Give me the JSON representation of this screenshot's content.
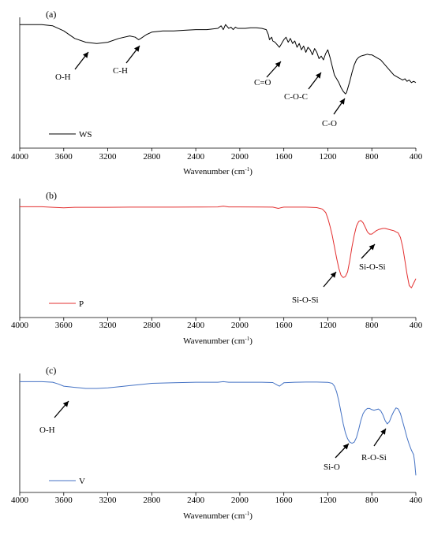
{
  "chart_data": [
    {
      "type": "line",
      "panel_label": "(a)",
      "xlabel": "Wavenumber (cm",
      "xlabel_sup": "-1",
      "xlabel_close": ")",
      "xlim": [
        4000,
        400
      ],
      "x_reversed": true,
      "ylabel": "",
      "grid": false,
      "legend_position": "bottom-left",
      "x_ticks": [
        "4000",
        "3600",
        "3200",
        "2800",
        "2400",
        "2000",
        "1600",
        "1200",
        "800",
        "400"
      ],
      "x_tick_values": [
        4000,
        3600,
        3200,
        2800,
        2400,
        2000,
        1600,
        1200,
        800,
        400
      ],
      "series": [
        {
          "name": "WS",
          "color": "#000000",
          "x": [
            4000,
            3800,
            3700,
            3600,
            3500,
            3400,
            3300,
            3200,
            3100,
            3000,
            2950,
            2920,
            2900,
            2850,
            2800,
            2700,
            2600,
            2500,
            2400,
            2300,
            2200,
            2170,
            2150,
            2130,
            2100,
            2080,
            2060,
            2040,
            2020,
            2000,
            1950,
            1900,
            1850,
            1800,
            1760,
            1740,
            1730,
            1710,
            1700,
            1680,
            1660,
            1640,
            1620,
            1600,
            1580,
            1560,
            1540,
            1520,
            1500,
            1480,
            1460,
            1440,
            1420,
            1400,
            1380,
            1360,
            1340,
            1320,
            1300,
            1280,
            1260,
            1240,
            1220,
            1200,
            1180,
            1160,
            1140,
            1120,
            1100,
            1080,
            1060,
            1040,
            1030,
            1020,
            1000,
            980,
            960,
            940,
            920,
            900,
            880,
            860,
            840,
            820,
            800,
            780,
            760,
            740,
            720,
            700,
            680,
            660,
            640,
            620,
            600,
            580,
            560,
            540,
            520,
            500,
            480,
            460,
            440,
            420,
            400
          ],
          "y": [
            0.98,
            0.98,
            0.97,
            0.93,
            0.87,
            0.84,
            0.83,
            0.84,
            0.87,
            0.89,
            0.88,
            0.86,
            0.87,
            0.9,
            0.92,
            0.93,
            0.93,
            0.935,
            0.94,
            0.94,
            0.95,
            0.97,
            0.94,
            0.98,
            0.95,
            0.96,
            0.94,
            0.96,
            0.95,
            0.95,
            0.95,
            0.955,
            0.955,
            0.95,
            0.94,
            0.9,
            0.86,
            0.88,
            0.85,
            0.84,
            0.82,
            0.8,
            0.83,
            0.86,
            0.88,
            0.84,
            0.87,
            0.83,
            0.85,
            0.8,
            0.83,
            0.78,
            0.81,
            0.76,
            0.8,
            0.78,
            0.74,
            0.79,
            0.76,
            0.71,
            0.73,
            0.7,
            0.75,
            0.78,
            0.72,
            0.65,
            0.58,
            0.55,
            0.52,
            0.48,
            0.45,
            0.43,
            0.44,
            0.47,
            0.53,
            0.6,
            0.66,
            0.7,
            0.72,
            0.73,
            0.735,
            0.74,
            0.745,
            0.74,
            0.74,
            0.73,
            0.72,
            0.71,
            0.7,
            0.68,
            0.66,
            0.64,
            0.62,
            0.6,
            0.58,
            0.57,
            0.56,
            0.55,
            0.54,
            0.55,
            0.53,
            0.54,
            0.52,
            0.53,
            0.52
          ]
        }
      ],
      "annotations": [
        "O-H",
        "C-H",
        "C=O",
        "C-O-C",
        "C-O"
      ]
    },
    {
      "type": "line",
      "panel_label": "(b)",
      "xlabel": "Wavenumber (cm",
      "xlabel_sup": "-1",
      "xlabel_close": ")",
      "xlim": [
        4000,
        400
      ],
      "x_reversed": true,
      "ylabel": "",
      "grid": false,
      "legend_position": "bottom-left",
      "x_ticks": [
        "4000",
        "3600",
        "3200",
        "2800",
        "2400",
        "2000",
        "1600",
        "1200",
        "800",
        "400"
      ],
      "x_tick_values": [
        4000,
        3600,
        3200,
        2800,
        2400,
        2000,
        1600,
        1200,
        800,
        400
      ],
      "series": [
        {
          "name": "P",
          "color": "#e32f2f",
          "x": [
            4000,
            3800,
            3700,
            3600,
            3500,
            3400,
            3200,
            3000,
            2800,
            2600,
            2400,
            2200,
            2150,
            2100,
            2000,
            1800,
            1700,
            1650,
            1630,
            1600,
            1500,
            1400,
            1300,
            1250,
            1220,
            1200,
            1180,
            1160,
            1140,
            1120,
            1100,
            1080,
            1060,
            1040,
            1020,
            1000,
            980,
            960,
            940,
            920,
            900,
            880,
            860,
            840,
            820,
            800,
            780,
            760,
            740,
            720,
            700,
            680,
            660,
            640,
            620,
            600,
            580,
            560,
            540,
            520,
            500,
            480,
            460,
            440,
            420,
            400
          ],
          "y": [
            0.97,
            0.97,
            0.965,
            0.96,
            0.965,
            0.965,
            0.965,
            0.966,
            0.966,
            0.966,
            0.967,
            0.968,
            0.975,
            0.968,
            0.968,
            0.967,
            0.966,
            0.955,
            0.96,
            0.966,
            0.966,
            0.966,
            0.962,
            0.95,
            0.92,
            0.87,
            0.8,
            0.72,
            0.62,
            0.52,
            0.43,
            0.37,
            0.35,
            0.36,
            0.4,
            0.5,
            0.62,
            0.72,
            0.8,
            0.84,
            0.85,
            0.83,
            0.79,
            0.75,
            0.73,
            0.73,
            0.745,
            0.76,
            0.77,
            0.775,
            0.78,
            0.78,
            0.775,
            0.77,
            0.765,
            0.76,
            0.75,
            0.74,
            0.7,
            0.62,
            0.5,
            0.38,
            0.28,
            0.26,
            0.3,
            0.34
          ]
        }
      ],
      "annotations": [
        "Si-O-Si",
        "Si-O-Si"
      ]
    },
    {
      "type": "line",
      "panel_label": "(c)",
      "xlabel": "Wavenumber (cm",
      "xlabel_sup": "-1",
      "xlabel_close": ")",
      "xlim": [
        4000,
        400
      ],
      "x_reversed": true,
      "ylabel": "",
      "grid": false,
      "legend_position": "bottom-left",
      "x_ticks": [
        "4000",
        "3600",
        "3200",
        "2800",
        "2400",
        "2000",
        "1600",
        "1200",
        "800",
        "400"
      ],
      "x_tick_values": [
        4000,
        3600,
        3200,
        2800,
        2400,
        2000,
        1600,
        1200,
        800,
        400
      ],
      "series": [
        {
          "name": "V",
          "color": "#4472c4",
          "x": [
            4000,
            3800,
            3700,
            3650,
            3600,
            3550,
            3500,
            3450,
            3400,
            3300,
            3200,
            3100,
            3000,
            2900,
            2800,
            2600,
            2400,
            2200,
            2150,
            2100,
            2000,
            1800,
            1700,
            1660,
            1640,
            1620,
            1600,
            1500,
            1400,
            1300,
            1200,
            1160,
            1140,
            1120,
            1100,
            1080,
            1060,
            1040,
            1020,
            1000,
            980,
            960,
            940,
            920,
            900,
            880,
            860,
            840,
            820,
            800,
            780,
            760,
            740,
            720,
            700,
            680,
            660,
            640,
            620,
            600,
            580,
            560,
            540,
            520,
            500,
            480,
            460,
            440,
            420,
            410,
            405,
            400
          ],
          "y": [
            0.97,
            0.97,
            0.965,
            0.95,
            0.93,
            0.925,
            0.92,
            0.915,
            0.91,
            0.91,
            0.915,
            0.925,
            0.935,
            0.945,
            0.955,
            0.96,
            0.965,
            0.965,
            0.97,
            0.965,
            0.965,
            0.965,
            0.962,
            0.94,
            0.93,
            0.945,
            0.96,
            0.965,
            0.966,
            0.966,
            0.964,
            0.955,
            0.93,
            0.88,
            0.8,
            0.7,
            0.6,
            0.52,
            0.47,
            0.44,
            0.43,
            0.44,
            0.48,
            0.55,
            0.63,
            0.69,
            0.72,
            0.735,
            0.735,
            0.725,
            0.72,
            0.725,
            0.73,
            0.715,
            0.68,
            0.63,
            0.6,
            0.62,
            0.67,
            0.71,
            0.74,
            0.73,
            0.69,
            0.62,
            0.55,
            0.48,
            0.42,
            0.37,
            0.33,
            0.26,
            0.2,
            0.15
          ]
        }
      ],
      "annotations": [
        "O-H",
        "Si-O",
        "R-O-Si"
      ]
    }
  ]
}
